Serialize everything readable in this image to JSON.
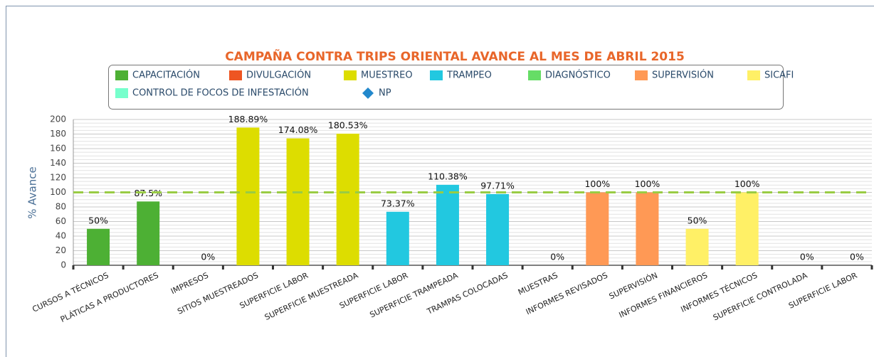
{
  "chart_data": {
    "type": "bar",
    "title": "CAMPAÑA CONTRA TRIPS ORIENTAL AVANCE AL MES DE ABRIL 2015",
    "y_label": "% Avance",
    "categories": [
      "CURSOS A TÉCNICOS",
      "PLÁTICAS A PRODUCTORES",
      "IMPRESOS",
      "SITIOS MUESTREADOS",
      "SUPERFICIE LABOR",
      "SUPERFICIE MUESTREADA",
      "SUPERFICIE LABOR",
      "SUPERFICIE TRAMPEADA",
      "TRAMPAS COLOCADAS",
      "MUESTRAS",
      "INFORMES REVISADOS",
      "SUPERVISIÓN",
      "INFORMES FINANCIEROS",
      "INFORMES TÉCNICOS",
      "SUPERFICIE CONTROLADA",
      "SUPERFICIE LABOR"
    ],
    "series": [
      {
        "name": "CAPACITACIÓN",
        "color": "#4db034",
        "values": [
          50,
          87.5,
          null,
          null,
          null,
          null,
          null,
          null,
          null,
          null,
          null,
          null,
          null,
          null,
          null,
          null
        ],
        "value_labels": [
          "50%",
          "87.5%",
          null,
          null,
          null,
          null,
          null,
          null,
          null,
          null,
          null,
          null,
          null,
          null,
          null,
          null
        ]
      },
      {
        "name": "DIVULGACIÓN",
        "color": "#ee5522",
        "values": [
          null,
          null,
          0,
          null,
          null,
          null,
          null,
          null,
          null,
          null,
          null,
          null,
          null,
          null,
          null,
          null
        ],
        "value_labels": [
          null,
          null,
          "0%",
          null,
          null,
          null,
          null,
          null,
          null,
          null,
          null,
          null,
          null,
          null,
          null,
          null
        ]
      },
      {
        "name": "MUESTREO",
        "color": "#dddd00",
        "values": [
          null,
          null,
          null,
          188.89,
          174.08,
          180.53,
          null,
          null,
          null,
          null,
          null,
          null,
          null,
          null,
          null,
          null
        ],
        "value_labels": [
          null,
          null,
          null,
          "188.89%",
          "174.08%",
          "180.53%",
          null,
          null,
          null,
          null,
          null,
          null,
          null,
          null,
          null,
          null
        ]
      },
      {
        "name": "TRAMPEO",
        "color": "#22c8e0",
        "values": [
          null,
          null,
          null,
          null,
          null,
          null,
          73.37,
          110.38,
          97.71,
          null,
          null,
          null,
          null,
          null,
          null,
          null
        ],
        "value_labels": [
          null,
          null,
          null,
          null,
          null,
          null,
          "73.37%",
          "110.38%",
          "97.71%",
          null,
          null,
          null,
          null,
          null,
          null,
          null
        ]
      },
      {
        "name": "DIAGNÓSTICO",
        "color": "#66dd66",
        "values": [
          null,
          null,
          null,
          null,
          null,
          null,
          null,
          null,
          null,
          0,
          null,
          null,
          null,
          null,
          null,
          null
        ],
        "value_labels": [
          null,
          null,
          null,
          null,
          null,
          null,
          null,
          null,
          null,
          "0%",
          null,
          null,
          null,
          null,
          null,
          null
        ]
      },
      {
        "name": "SUPERVISIÓN",
        "color": "#ff9955",
        "values": [
          null,
          null,
          null,
          null,
          null,
          null,
          null,
          null,
          null,
          null,
          100,
          100,
          null,
          null,
          null,
          null
        ],
        "value_labels": [
          null,
          null,
          null,
          null,
          null,
          null,
          null,
          null,
          null,
          null,
          "100%",
          "100%",
          null,
          null,
          null,
          null
        ]
      },
      {
        "name": "SICAFI",
        "color": "#fff066",
        "values": [
          null,
          null,
          null,
          null,
          null,
          null,
          null,
          null,
          null,
          null,
          null,
          null,
          50,
          100,
          null,
          null
        ],
        "value_labels": [
          null,
          null,
          null,
          null,
          null,
          null,
          null,
          null,
          null,
          null,
          null,
          null,
          "50%",
          "100%",
          null,
          null
        ]
      },
      {
        "name": "CONTROL DE FOCOS DE INFESTACIÓN",
        "color": "#77ffcc",
        "values": [
          null,
          null,
          null,
          null,
          null,
          null,
          null,
          null,
          null,
          null,
          null,
          null,
          null,
          null,
          0,
          0
        ],
        "value_labels": [
          null,
          null,
          null,
          null,
          null,
          null,
          null,
          null,
          null,
          null,
          null,
          null,
          null,
          null,
          "0%",
          "0%"
        ]
      },
      {
        "name": "NP",
        "color": "#2288cc",
        "marker": "diamond",
        "values": [
          null,
          null,
          null,
          null,
          null,
          null,
          null,
          null,
          null,
          null,
          null,
          null,
          null,
          null,
          null,
          null
        ]
      }
    ],
    "reference_line": {
      "value": 100,
      "color": "#99cc44"
    },
    "ylim": [
      0,
      200
    ],
    "yticks": [
      0,
      20,
      40,
      60,
      80,
      100,
      120,
      140,
      160,
      180,
      200
    ],
    "minor_grid": 5,
    "grid": true
  }
}
